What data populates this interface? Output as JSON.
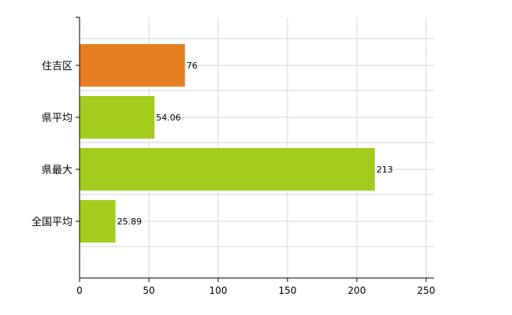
{
  "chart_data": {
    "type": "bar",
    "orientation": "horizontal",
    "categories": [
      "住吉区",
      "県平均",
      "県最大",
      "全国平均"
    ],
    "values": [
      76,
      54.06,
      213,
      25.89
    ],
    "value_labels": [
      "76",
      "54.06",
      "213",
      "25.89"
    ],
    "bar_colors": [
      "#e67e22",
      "#a3cc1f",
      "#a3cc1f",
      "#a3cc1f"
    ],
    "xlim": [
      0,
      250
    ],
    "xticks": [
      0,
      50,
      100,
      150,
      200,
      250
    ],
    "grid": true,
    "title": "",
    "xlabel": "",
    "ylabel": ""
  }
}
